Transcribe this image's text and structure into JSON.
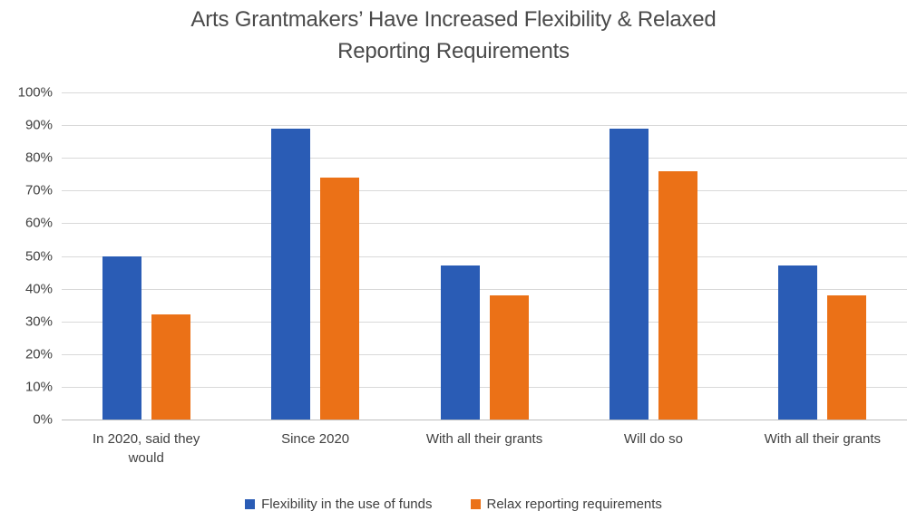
{
  "title": {
    "line1": "Arts Grantmakers’ Have Increased Flexibility & Relaxed",
    "line2": "Reporting Requirements"
  },
  "colors": {
    "series_blue": "#2a5cb5",
    "series_orange": "#eb7117",
    "gridline": "#d9d9d9",
    "axis_line": "#bfbfbf",
    "axis_text": "#404040",
    "title_text": "#4a4a4a",
    "background": "#ffffff"
  },
  "chart_data": {
    "type": "bar",
    "title": "Arts Grantmakers’ Have Increased Flexibility & Relaxed Reporting Requirements",
    "categories": [
      "In 2020, said they would",
      "Since 2020",
      "With all their grants",
      "Will do so",
      "With all their grants"
    ],
    "series": [
      {
        "name": "Flexibility in the use of funds",
        "color": "#2a5cb5",
        "values": [
          50,
          89,
          47,
          89,
          47
        ]
      },
      {
        "name": "Relax reporting requirements",
        "color": "#eb7117",
        "values": [
          32,
          74,
          38,
          76,
          38
        ]
      }
    ],
    "xlabel": "",
    "ylabel": "",
    "ylim": [
      0,
      100
    ],
    "ytick_step": 10,
    "ytick_labels": [
      "0%",
      "10%",
      "20%",
      "30%",
      "40%",
      "50%",
      "60%",
      "70%",
      "80%",
      "90%",
      "100%"
    ],
    "grid": "horizontal",
    "legend_position": "bottom"
  }
}
